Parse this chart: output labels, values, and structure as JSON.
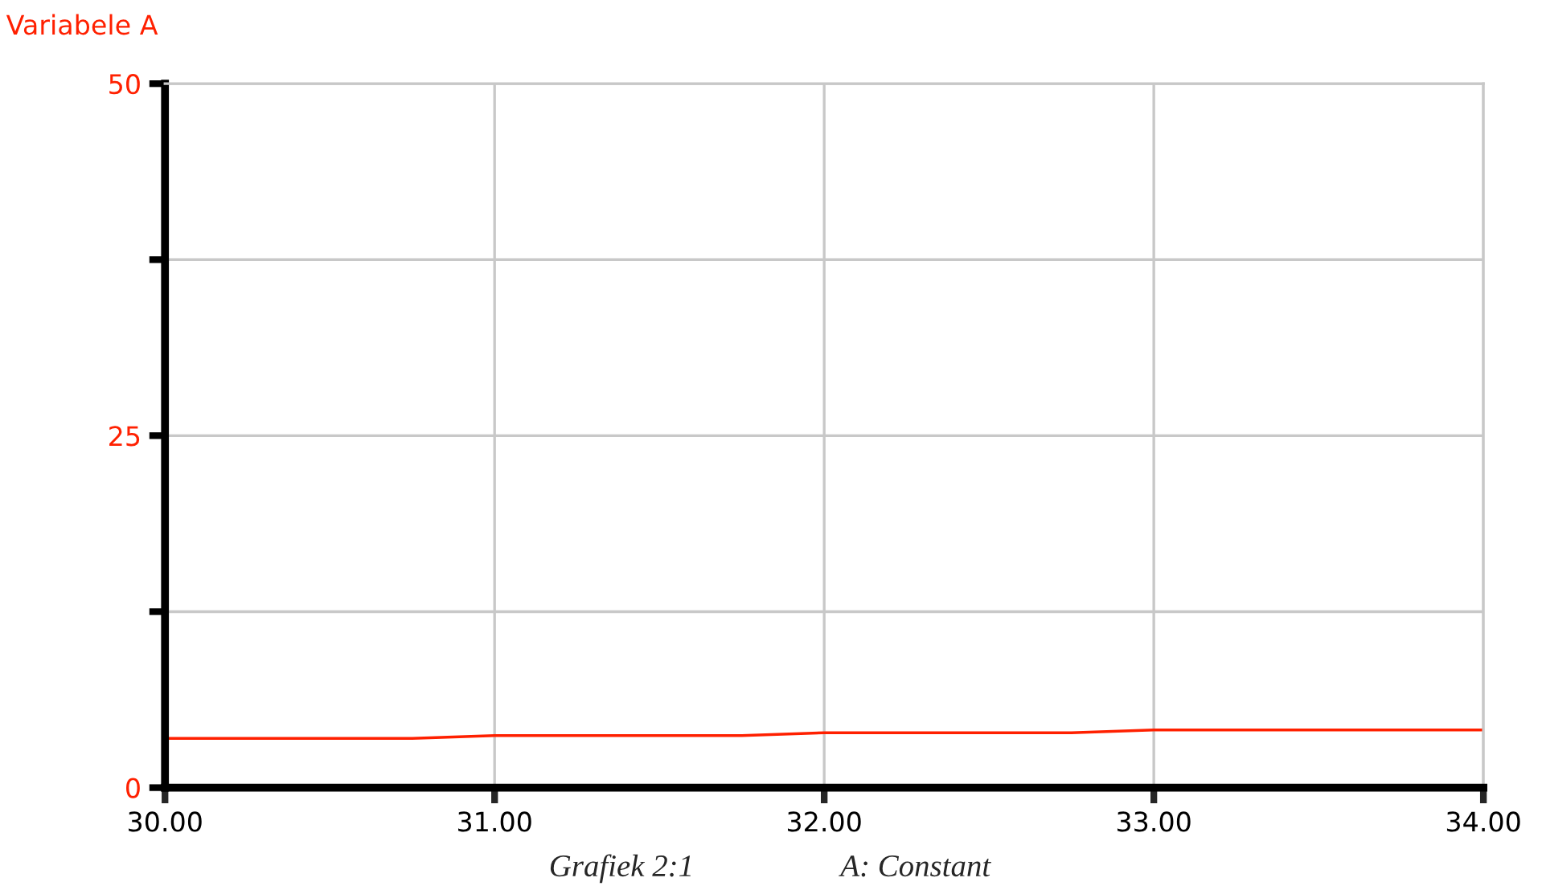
{
  "chart_data": {
    "type": "line",
    "ylabel": "Variabele A",
    "annotations": [
      "Grafiek 2:1",
      "A: Constant"
    ],
    "x": [
      30,
      30.75,
      31,
      31.75,
      32,
      32.75,
      33,
      34
    ],
    "series": [
      {
        "color": "#ff2000",
        "values": [
          3.5,
          3.5,
          3.7,
          3.7,
          3.9,
          3.9,
          4.1,
          4.1
        ]
      }
    ],
    "xlim": [
      30,
      34
    ],
    "xticks": [
      {
        "value": 30,
        "label": "30.00"
      },
      {
        "value": 31,
        "label": "31.00"
      },
      {
        "value": 32,
        "label": "32.00"
      },
      {
        "value": 33,
        "label": "33.00"
      },
      {
        "value": 34,
        "label": "34.00"
      }
    ],
    "ylim": [
      0,
      50
    ],
    "yticks": [
      0,
      {
        "value": 12.5,
        "label": null
      },
      25,
      {
        "value": 37.5,
        "label": null
      },
      50
    ],
    "grid": true,
    "legend": false
  }
}
